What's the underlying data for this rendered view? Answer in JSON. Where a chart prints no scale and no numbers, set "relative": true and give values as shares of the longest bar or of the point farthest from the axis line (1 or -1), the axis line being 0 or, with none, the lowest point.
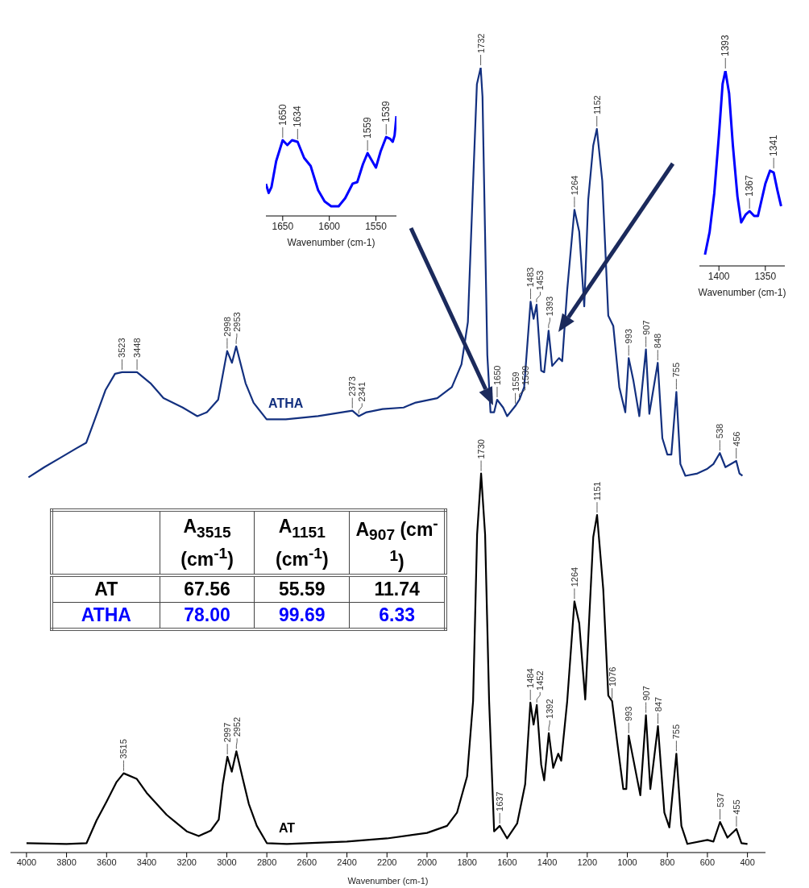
{
  "chart_data": [
    {
      "type": "line",
      "relative": true,
      "xlabel": "Wavenumber (cm-1)",
      "xlim": [
        4080,
        310
      ],
      "xticks": [
        4000,
        3800,
        3600,
        3400,
        3200,
        3000,
        2800,
        2600,
        2400,
        2200,
        2000,
        1800,
        1600,
        1400,
        1200,
        1000,
        800,
        600,
        400
      ],
      "series": [
        {
          "name": "ATHA",
          "color": "#13307f",
          "x": [
            3990,
            3911,
            3831,
            3751,
            3702,
            3670,
            3606,
            3558,
            3523,
            3448,
            3381,
            3316,
            3220,
            3147,
            3099,
            3043,
            2998,
            2974,
            2953,
            2906,
            2866,
            2801,
            2705,
            2544,
            2373,
            2341,
            2302,
            2222,
            2117,
            2061,
            1949,
            1876,
            1828,
            1796,
            1772,
            1751,
            1732,
            1723,
            1711,
            1699,
            1683,
            1665,
            1650,
            1620,
            1600,
            1559,
            1539,
            1515,
            1483,
            1468,
            1453,
            1430,
            1415,
            1393,
            1375,
            1341,
            1325,
            1300,
            1264,
            1240,
            1215,
            1195,
            1170,
            1152,
            1125,
            1095,
            1070,
            1040,
            1010,
            993,
            970,
            940,
            907,
            890,
            848,
            825,
            800,
            780,
            755,
            735,
            710,
            650,
            600,
            570,
            538,
            510,
            456,
            440,
            425
          ],
          "values": [
            0.478,
            0.491,
            0.503,
            0.515,
            0.522,
            0.544,
            0.589,
            0.61,
            0.612,
            0.612,
            0.598,
            0.579,
            0.567,
            0.556,
            0.561,
            0.577,
            0.639,
            0.624,
            0.645,
            0.598,
            0.573,
            0.552,
            0.552,
            0.556,
            0.563,
            0.556,
            0.561,
            0.565,
            0.567,
            0.573,
            0.579,
            0.593,
            0.622,
            0.676,
            0.84,
            0.979,
            1.0,
            0.963,
            0.799,
            0.634,
            0.561,
            0.561,
            0.577,
            0.567,
            0.556,
            0.569,
            0.577,
            0.593,
            0.702,
            0.68,
            0.698,
            0.614,
            0.612,
            0.665,
            0.62,
            0.63,
            0.626,
            0.717,
            0.819,
            0.791,
            0.696,
            0.832,
            0.901,
            0.922,
            0.856,
            0.684,
            0.671,
            0.593,
            0.561,
            0.63,
            0.602,
            0.556,
            0.641,
            0.559,
            0.624,
            0.528,
            0.507,
            0.507,
            0.587,
            0.495,
            0.48,
            0.483,
            0.489,
            0.495,
            0.509,
            0.491,
            0.499,
            0.483,
            0.48
          ]
        },
        {
          "name": "AT",
          "color": "#000000",
          "x": [
            4000,
            3800,
            3700,
            3650,
            3600,
            3550,
            3515,
            3450,
            3400,
            3300,
            3200,
            3140,
            3080,
            3040,
            3020,
            2997,
            2975,
            2952,
            2920,
            2890,
            2850,
            2800,
            2700,
            2400,
            2200,
            2000,
            1900,
            1850,
            1800,
            1770,
            1750,
            1730,
            1710,
            1690,
            1665,
            1637,
            1600,
            1550,
            1510,
            1484,
            1468,
            1452,
            1430,
            1415,
            1392,
            1370,
            1345,
            1330,
            1300,
            1264,
            1240,
            1210,
            1190,
            1170,
            1151,
            1120,
            1095,
            1076,
            1050,
            1020,
            1005,
            993,
            970,
            935,
            907,
            885,
            847,
            815,
            790,
            755,
            730,
            700,
            600,
            570,
            537,
            500,
            455,
            430,
            400
          ],
          "values": [
            0.012,
            0.011,
            0.012,
            0.041,
            0.065,
            0.09,
            0.101,
            0.094,
            0.076,
            0.048,
            0.027,
            0.021,
            0.028,
            0.042,
            0.087,
            0.122,
            0.103,
            0.129,
            0.094,
            0.062,
            0.034,
            0.012,
            0.011,
            0.014,
            0.018,
            0.025,
            0.034,
            0.051,
            0.097,
            0.193,
            0.405,
            0.483,
            0.405,
            0.193,
            0.027,
            0.034,
            0.018,
            0.037,
            0.087,
            0.191,
            0.163,
            0.188,
            0.112,
            0.092,
            0.152,
            0.108,
            0.126,
            0.117,
            0.193,
            0.32,
            0.292,
            0.195,
            0.299,
            0.402,
            0.43,
            0.335,
            0.2,
            0.193,
            0.14,
            0.081,
            0.081,
            0.149,
            0.119,
            0.073,
            0.175,
            0.081,
            0.161,
            0.051,
            0.032,
            0.126,
            0.034,
            0.011,
            0.016,
            0.014,
            0.039,
            0.019,
            0.03,
            0.012,
            0.011
          ]
        }
      ],
      "annotations": [
        {
          "text": "3523",
          "x": 3523,
          "y": 0.612
        },
        {
          "text": "3448",
          "x": 3448,
          "y": 0.612
        },
        {
          "text": "2998",
          "x": 2998,
          "y": 0.639
        },
        {
          "text": "2953",
          "x": 2953,
          "y": 0.645
        },
        {
          "text": "2373",
          "x": 2373,
          "y": 0.563
        },
        {
          "text": "2341",
          "x": 2341,
          "y": 0.556
        },
        {
          "text": "1732",
          "x": 1732,
          "y": 1.0
        },
        {
          "text": "1650",
          "x": 1650,
          "y": 0.577
        },
        {
          "text": "1559",
          "x": 1559,
          "y": 0.569
        },
        {
          "text": "1539",
          "x": 1539,
          "y": 0.577
        },
        {
          "text": "1483",
          "x": 1483,
          "y": 0.702
        },
        {
          "text": "1453",
          "x": 1453,
          "y": 0.698
        },
        {
          "text": "1393",
          "x": 1393,
          "y": 0.665
        },
        {
          "text": "1264",
          "x": 1264,
          "y": 0.819
        },
        {
          "text": "1152",
          "x": 1152,
          "y": 0.922
        },
        {
          "text": "993",
          "x": 993,
          "y": 0.63
        },
        {
          "text": "907",
          "x": 907,
          "y": 0.641
        },
        {
          "text": "848",
          "x": 848,
          "y": 0.624
        },
        {
          "text": "755",
          "x": 755,
          "y": 0.587
        },
        {
          "text": "538",
          "x": 538,
          "y": 0.509
        },
        {
          "text": "456",
          "x": 456,
          "y": 0.499
        },
        {
          "text": "3515",
          "x": 3515,
          "y": 0.101
        },
        {
          "text": "2997",
          "x": 2997,
          "y": 0.122
        },
        {
          "text": "2952",
          "x": 2952,
          "y": 0.129
        },
        {
          "text": "1730",
          "x": 1730,
          "y": 0.483
        },
        {
          "text": "1637",
          "x": 1637,
          "y": 0.034
        },
        {
          "text": "1484",
          "x": 1484,
          "y": 0.191
        },
        {
          "text": "1452",
          "x": 1452,
          "y": 0.188
        },
        {
          "text": "1392",
          "x": 1392,
          "y": 0.152
        },
        {
          "text": "1264",
          "x": 1264,
          "y": 0.32
        },
        {
          "text": "1151",
          "x": 1151,
          "y": 0.43
        },
        {
          "text": "1076",
          "x": 1076,
          "y": 0.193
        },
        {
          "text": "993",
          "x": 993,
          "y": 0.149
        },
        {
          "text": "907",
          "x": 907,
          "y": 0.175
        },
        {
          "text": "847",
          "x": 847,
          "y": 0.161
        },
        {
          "text": "755",
          "x": 755,
          "y": 0.126
        },
        {
          "text": "537",
          "x": 537,
          "y": 0.039
        },
        {
          "text": "455",
          "x": 455,
          "y": 0.03
        }
      ]
    },
    {
      "type": "line",
      "relative": true,
      "xlabel": "Wavenumber (cm-1)",
      "xlim": [
        1668,
        1528
      ],
      "xticks": [
        1650,
        1600,
        1550
      ],
      "series": [
        {
          "color": "#0000ff",
          "x": [
            1668,
            1665,
            1662,
            1657,
            1650,
            1645,
            1640,
            1634,
            1627,
            1620,
            1612,
            1605,
            1598,
            1590,
            1583,
            1575,
            1570,
            1564,
            1559,
            1550,
            1545,
            1539,
            1535,
            1532,
            1530,
            1528
          ],
          "values": [
            0.32,
            0.23,
            0.29,
            0.548,
            0.758,
            0.71,
            0.758,
            0.742,
            0.581,
            0.5,
            0.258,
            0.145,
            0.097,
            0.097,
            0.177,
            0.323,
            0.339,
            0.516,
            0.629,
            0.484,
            0.645,
            0.79,
            0.774,
            0.742,
            0.806,
            1.0
          ]
        }
      ],
      "annotations": [
        {
          "text": "1650",
          "x": 1650,
          "y": 0.758
        },
        {
          "text": "1634",
          "x": 1634,
          "y": 0.742
        },
        {
          "text": "1559",
          "x": 1559,
          "y": 0.629
        },
        {
          "text": "1539",
          "x": 1539,
          "y": 0.79
        }
      ]
    },
    {
      "type": "line",
      "relative": true,
      "xlabel": "Wavenumber (cm-1)",
      "xlim": [
        1421,
        1329
      ],
      "xticks": [
        1400,
        1350
      ],
      "series": [
        {
          "color": "#0000ff",
          "x": [
            1415,
            1410,
            1405,
            1400,
            1396,
            1393,
            1389,
            1385,
            1380,
            1376,
            1371,
            1367,
            1362,
            1358,
            1350,
            1345,
            1341,
            1337,
            1333
          ],
          "values": [
            0.058,
            0.174,
            0.372,
            0.669,
            0.934,
            1.0,
            0.884,
            0.62,
            0.355,
            0.223,
            0.264,
            0.281,
            0.256,
            0.256,
            0.421,
            0.488,
            0.479,
            0.388,
            0.306
          ]
        }
      ],
      "annotations": [
        {
          "text": "1393",
          "x": 1393,
          "y": 1.0
        },
        {
          "text": "1367",
          "x": 1367,
          "y": 0.281
        },
        {
          "text": "1341",
          "x": 1341,
          "y": 0.488
        }
      ]
    },
    {
      "type": "other",
      "categories": [
        "A$_{3515}$ (cm$^{-1}$)",
        "A$_{1151}$ (cm$^{-1}$)",
        "A$_{907}$ (cm$^{-1}$)"
      ],
      "y_categories": [
        "AT",
        "ATHA"
      ],
      "colors": [
        "#000000",
        "#0000ff"
      ],
      "cell_labels": [
        [
          "67.56",
          "55.59",
          "11.74"
        ],
        [
          "78.00",
          "99.69",
          "6.33"
        ]
      ]
    }
  ]
}
